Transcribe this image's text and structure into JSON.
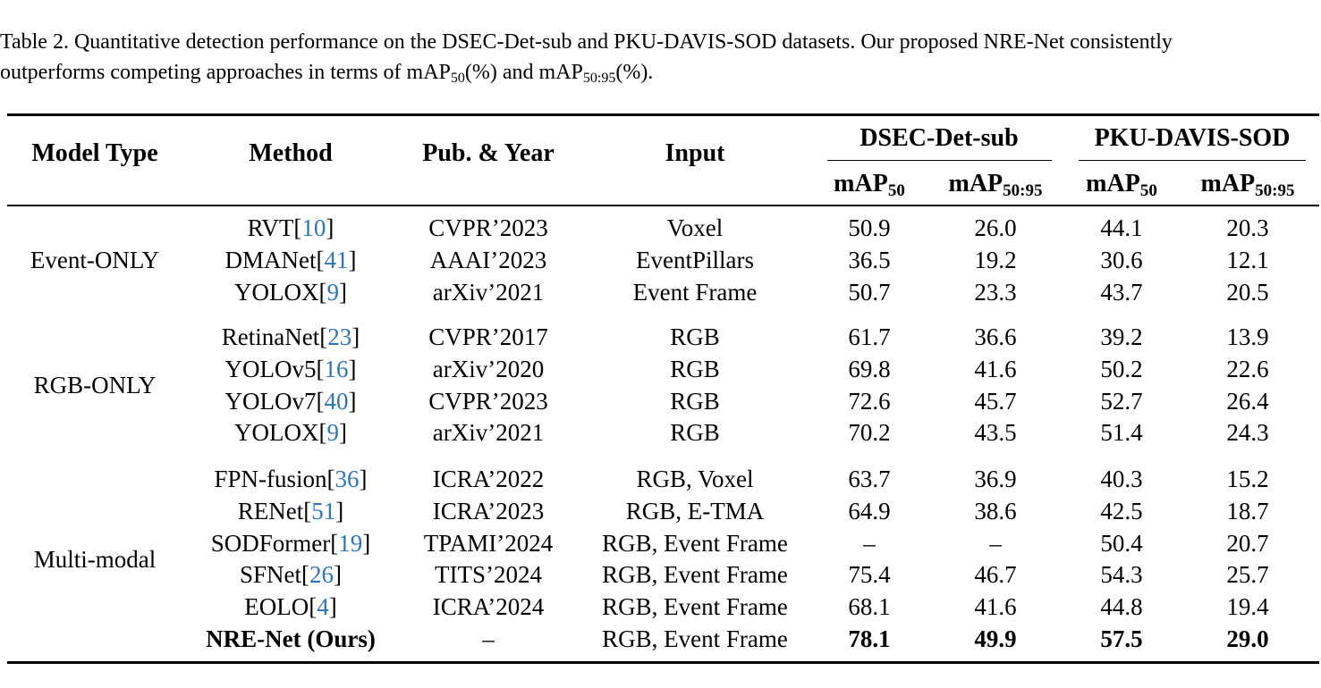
{
  "caption": {
    "line1": "Table 2. Quantitative detection performance on the DSEC-Det-sub and PKU-DAVIS-SOD datasets. Our proposed NRE-Net consistently",
    "line2_a": "outperforms competing approaches in terms of mAP",
    "line2_sub1": "50",
    "line2_b": "(%) and mAP",
    "line2_sub2": "50:95",
    "line2_c": "(%)."
  },
  "header": {
    "model_type": "Model Type",
    "method": "Method",
    "pub_year": "Pub. & Year",
    "input": "Input",
    "dsec": "DSEC-Det-sub",
    "pku": "PKU-DAVIS-SOD",
    "map": "mAP",
    "sub50": "50",
    "sub5095": "50:95"
  },
  "groups": [
    {
      "model_type": "Event-ONLY",
      "rows": [
        {
          "method": "RVT",
          "ref": "10",
          "pub": "CVPR’2023",
          "input": "Voxel",
          "d50": "50.9",
          "d5095": "26.0",
          "p50": "44.1",
          "p5095": "20.3"
        },
        {
          "method": "DMANet",
          "ref": "41",
          "pub": "AAAI’2023",
          "input": "EventPillars",
          "d50": "36.5",
          "d5095": "19.2",
          "p50": "30.6",
          "p5095": "12.1"
        },
        {
          "method": "YOLOX",
          "ref": "9",
          "pub": "arXiv’2021",
          "input": "Event Frame",
          "d50": "50.7",
          "d5095": "23.3",
          "p50": "43.7",
          "p5095": "20.5"
        }
      ]
    },
    {
      "model_type": "RGB-ONLY",
      "rows": [
        {
          "method": "RetinaNet",
          "ref": "23",
          "pub": "CVPR’2017",
          "input": "RGB",
          "d50": "61.7",
          "d5095": "36.6",
          "p50": "39.2",
          "p5095": "13.9"
        },
        {
          "method": "YOLOv5",
          "ref": "16",
          "pub": "arXiv’2020",
          "input": "RGB",
          "d50": "69.8",
          "d5095": "41.6",
          "p50": "50.2",
          "p5095": "22.6"
        },
        {
          "method": "YOLOv7",
          "ref": "40",
          "pub": "CVPR’2023",
          "input": "RGB",
          "d50": "72.6",
          "d5095": "45.7",
          "p50": "52.7",
          "p5095": "26.4"
        },
        {
          "method": "YOLOX",
          "ref": "9",
          "pub": "arXiv’2021",
          "input": "RGB",
          "d50": "70.2",
          "d5095": "43.5",
          "p50": "51.4",
          "p5095": "24.3"
        }
      ]
    },
    {
      "model_type": "Multi-modal",
      "rows": [
        {
          "method": "FPN-fusion",
          "ref": "36",
          "pub": "ICRA’2022",
          "input": "RGB, Voxel",
          "d50": "63.7",
          "d5095": "36.9",
          "p50": "40.3",
          "p5095": "15.2"
        },
        {
          "method": "RENet",
          "ref": "51",
          "pub": "ICRA’2023",
          "input": "RGB, E-TMA",
          "d50": "64.9",
          "d5095": "38.6",
          "p50": "42.5",
          "p5095": "18.7"
        },
        {
          "method": "SODFormer",
          "ref": "19",
          "pub": "TPAMI’2024",
          "input": "RGB, Event Frame",
          "d50": "–",
          "d5095": "–",
          "p50": "50.4",
          "p5095": "20.7"
        },
        {
          "method": "SFNet",
          "ref": "26",
          "pub": "TITS’2024",
          "input": "RGB, Event Frame",
          "d50": "75.4",
          "d5095": "46.7",
          "p50": "54.3",
          "p5095": "25.7"
        },
        {
          "method": "EOLO",
          "ref": "4",
          "pub": "ICRA’2024",
          "input": "RGB, Event Frame",
          "d50": "68.1",
          "d5095": "41.6",
          "p50": "44.8",
          "p5095": "19.4"
        },
        {
          "method": "NRE-Net (Ours)",
          "ref": "",
          "pub": "–",
          "input": "RGB, Event Frame",
          "d50": "78.1",
          "d5095": "49.9",
          "p50": "57.5",
          "p5095": "29.0",
          "bold": true
        }
      ]
    }
  ]
}
